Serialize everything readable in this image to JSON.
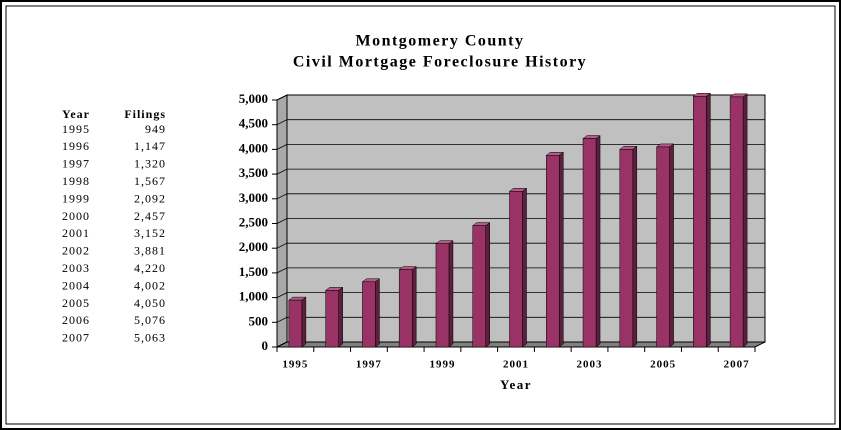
{
  "chart_data": {
    "type": "bar",
    "title": "Montgomery County",
    "subtitle": "Civil Mortgage Foreclosure History",
    "x_label": "Year",
    "categories": [
      "1995",
      null,
      "1997",
      null,
      "1999",
      null,
      "2001",
      null,
      "2003",
      null,
      "2005",
      null,
      "2007"
    ],
    "values": [
      949,
      1147,
      1320,
      1567,
      2092,
      2457,
      3152,
      3881,
      4220,
      4002,
      4050,
      5076,
      5063
    ],
    "color": "#993366",
    "ylim": [
      0,
      5000
    ],
    "yticks": [
      0,
      500,
      {
        "value": 1000,
        "label": "1,000"
      },
      {
        "value": 1500,
        "label": "1,500"
      },
      {
        "value": 2000,
        "label": "2,000"
      },
      {
        "value": 2500,
        "label": "2,500"
      },
      {
        "value": 3000,
        "label": "3,000"
      },
      {
        "value": 3500,
        "label": "3,500"
      },
      {
        "value": 4000,
        "label": "4,000"
      },
      {
        "value": 4500,
        "label": "4,500"
      },
      {
        "value": 5000,
        "label": "5,000"
      }
    ],
    "grid": true
  },
  "table": {
    "header": [
      "Year",
      "Filings"
    ],
    "rows": [
      [
        "1995",
        "949"
      ],
      [
        "1996",
        "1,147"
      ],
      [
        "1997",
        "1,320"
      ],
      [
        "1998",
        "1,567"
      ],
      [
        "1999",
        "2,092"
      ],
      [
        "2000",
        "2,457"
      ],
      [
        "2001",
        "3,152"
      ],
      [
        "2002",
        "3,881"
      ],
      [
        "2003",
        "4,220"
      ],
      [
        "2004",
        "4,002"
      ],
      [
        "2005",
        "4,050"
      ],
      [
        "2006",
        "5,076"
      ],
      [
        "2007",
        "5,063"
      ]
    ]
  }
}
